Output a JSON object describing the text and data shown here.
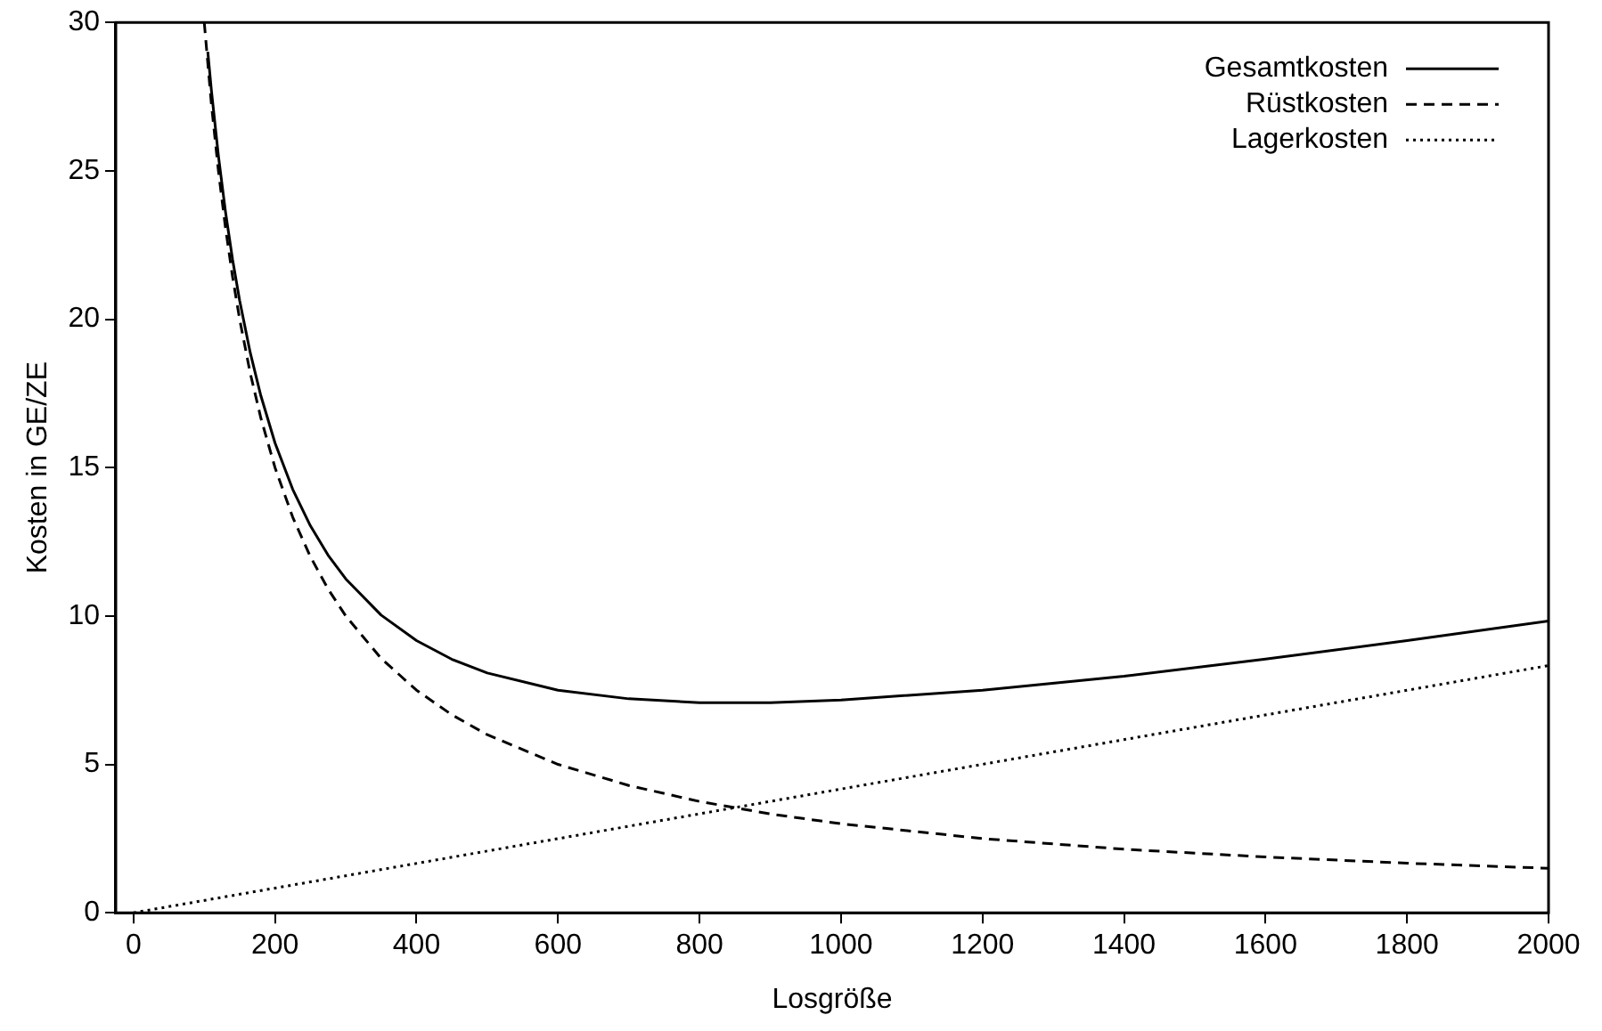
{
  "chart_data": {
    "type": "line",
    "xlabel": "Losgröße",
    "ylabel": "Kosten in GE/ZE",
    "xlim": [
      -25,
      2000
    ],
    "xticks": [
      0,
      200,
      400,
      600,
      800,
      1000,
      1200,
      1400,
      1600,
      1800,
      2000
    ],
    "ylim": [
      0,
      30
    ],
    "yticks": [
      0,
      5,
      10,
      15,
      20,
      25,
      30
    ],
    "grid": false,
    "legend": "top right",
    "marker": "none",
    "series": [
      {
        "name": "Gesamtkosten",
        "color": "#000000",
        "line_style": "solid",
        "x": [
          105,
          110,
          120,
          130,
          140,
          150,
          165,
          180,
          200,
          225,
          250,
          275,
          300,
          350,
          400,
          450,
          500,
          600,
          700,
          800,
          900,
          1000,
          1200,
          1400,
          1600,
          1800,
          2000
        ],
        "values": [
          29.01,
          27.73,
          25.5,
          23.62,
          22.01,
          20.63,
          18.87,
          17.42,
          15.83,
          14.27,
          13.04,
          12.05,
          11.25,
          10.03,
          9.17,
          8.54,
          8.08,
          7.5,
          7.21,
          7.08,
          7.08,
          7.17,
          7.5,
          7.97,
          8.55,
          9.17,
          9.83
        ]
      },
      {
        "name": "Rüstkosten",
        "color": "#000000",
        "line_style": "dashed",
        "x": [
          100,
          110,
          120,
          130,
          140,
          150,
          165,
          180,
          200,
          225,
          250,
          275,
          300,
          350,
          400,
          450,
          500,
          600,
          700,
          800,
          900,
          1000,
          1200,
          1400,
          1600,
          1800,
          2000
        ],
        "values": [
          30,
          27.27,
          25,
          23.08,
          21.43,
          20,
          18.18,
          16.67,
          15,
          13.33,
          12,
          10.91,
          10,
          8.57,
          7.5,
          6.67,
          6,
          5,
          4.29,
          3.75,
          3.33,
          3,
          2.5,
          2.14,
          1.88,
          1.67,
          1.5
        ]
      },
      {
        "name": "Lagerkosten",
        "color": "#000000",
        "line_style": "dotted",
        "x": [
          0,
          500,
          1000,
          1500,
          2000
        ],
        "values": [
          0,
          2.08,
          4.17,
          6.25,
          8.33
        ]
      }
    ]
  }
}
